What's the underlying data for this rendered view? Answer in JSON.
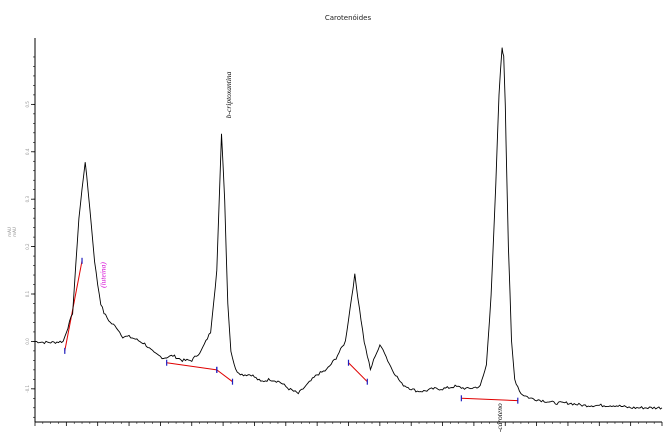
{
  "chart_data": {
    "type": "line",
    "title": "Carotenóides",
    "ylabel": "mAU",
    "ylabel2": "mAU",
    "ylim": [
      -0.17,
      0.64
    ],
    "xlim": [
      0,
      20
    ],
    "y_ticks": [
      -0.1,
      0.0,
      0.1,
      0.2,
      0.3,
      0.4,
      0.5
    ],
    "y_tick_labels": [
      "-0.1",
      "0.0",
      "0.1",
      "0.2",
      "0.3",
      "0.4",
      "0.5"
    ],
    "x_ticks": [
      0,
      1,
      2,
      3,
      4,
      5,
      6,
      7,
      8,
      9,
      10,
      11,
      12,
      13,
      14,
      15,
      16,
      17,
      18,
      19,
      20
    ],
    "line_color": "#000000",
    "baseline_color": "#e00000",
    "marker_color": "#1f1fbf",
    "series": [
      {
        "x": [
          0,
          0.3,
          0.6,
          0.9,
          1.2,
          1.4,
          1.6,
          1.75,
          1.9,
          2.0,
          2.1,
          2.2,
          2.3,
          2.4,
          2.6,
          2.8,
          3.0,
          3.2,
          3.5,
          3.8,
          4.1,
          4.4,
          4.7,
          5.0,
          5.3,
          5.6,
          5.8,
          5.95,
          6.05,
          6.15,
          6.25,
          6.4,
          6.6,
          6.9,
          7.2,
          7.5,
          7.8,
          8.1,
          8.4,
          8.7,
          9.0,
          9.3,
          9.6,
          9.9,
          10.2,
          10.5,
          10.7,
          10.85,
          11.0,
          11.1,
          11.25,
          11.4,
          11.55,
          11.7,
          11.85,
          12.0,
          12.2,
          12.4,
          12.7,
          13.0,
          13.4,
          13.8,
          14.2,
          14.4,
          14.55,
          14.7,
          14.8,
          14.9,
          14.95,
          15.0,
          15.05,
          15.1,
          15.2,
          15.3,
          15.5,
          15.8,
          16.2,
          16.6,
          17.0,
          17.5,
          18.0,
          18.5,
          19.0,
          19.5,
          20.0
        ],
        "y": [
          0.0,
          -0.002,
          -0.002,
          0.0,
          0.06,
          0.26,
          0.38,
          0.28,
          0.17,
          0.12,
          0.08,
          0.06,
          0.05,
          0.04,
          0.03,
          0.01,
          0.01,
          0.005,
          -0.005,
          -0.025,
          -0.035,
          -0.03,
          -0.04,
          -0.04,
          -0.02,
          0.02,
          0.15,
          0.44,
          0.3,
          0.08,
          -0.02,
          -0.06,
          -0.07,
          -0.07,
          -0.085,
          -0.08,
          -0.085,
          -0.1,
          -0.11,
          -0.09,
          -0.07,
          -0.06,
          -0.035,
          0.0,
          0.14,
          0.0,
          -0.06,
          -0.03,
          -0.01,
          -0.015,
          -0.04,
          -0.06,
          -0.075,
          -0.09,
          -0.095,
          -0.1,
          -0.105,
          -0.105,
          -0.1,
          -0.1,
          -0.095,
          -0.1,
          -0.095,
          -0.05,
          0.1,
          0.33,
          0.52,
          0.62,
          0.6,
          0.5,
          0.35,
          0.2,
          0.0,
          -0.08,
          -0.11,
          -0.12,
          -0.125,
          -0.13,
          -0.13,
          -0.135,
          -0.135,
          -0.135,
          -0.14,
          -0.14,
          -0.14
        ]
      }
    ],
    "peaks": [
      {
        "label": "(luteína)",
        "color": "#d400d4",
        "x": 2.25,
        "y": 0.14
      },
      {
        "label": "b-criptoxantina",
        "color": "#000000",
        "x": 6.25,
        "y": 0.52
      },
      {
        "label": "b-caroteno",
        "color": "#000000",
        "x": 14.9,
        "y": -0.165
      }
    ],
    "integration_baselines": [
      {
        "x": [
          0.95,
          1.5
        ],
        "y": [
          -0.02,
          0.17
        ]
      },
      {
        "x": [
          4.2,
          5.8
        ],
        "y": [
          -0.045,
          -0.06
        ]
      },
      {
        "x": [
          5.8,
          6.3
        ],
        "y": [
          -0.06,
          -0.085
        ]
      },
      {
        "x": [
          10.0,
          10.6
        ],
        "y": [
          -0.045,
          -0.085
        ]
      },
      {
        "x": [
          13.6,
          15.4
        ],
        "y": [
          -0.12,
          -0.125
        ]
      }
    ]
  }
}
